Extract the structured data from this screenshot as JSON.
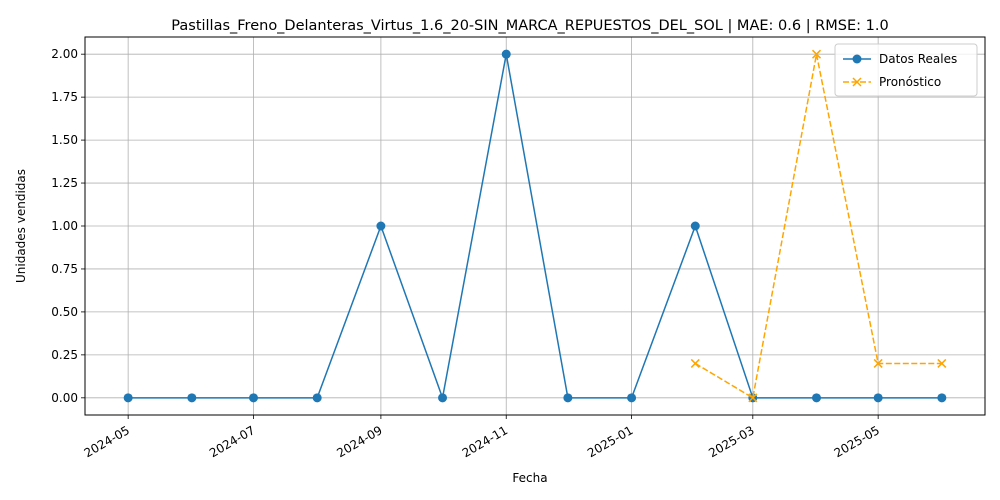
{
  "chart_data": {
    "type": "line",
    "title": "Pastillas_Freno_Delanteras_Virtus_1.6_20-SIN_MARCA_REPUESTOS_DEL_SOL | MAE: 0.6 | RMSE: 1.0",
    "xlabel": "Fecha",
    "ylabel": "Unidades vendidas",
    "xlim": [
      "2024-04-10",
      "2025-06-22"
    ],
    "ylim": [
      -0.1,
      2.1
    ],
    "grid": true,
    "legend_position": "top-right",
    "x_ticks": [
      "2024-05-01",
      "2024-07-01",
      "2024-09-01",
      "2024-11-01",
      "2025-01-01",
      "2025-03-01",
      "2025-05-01"
    ],
    "x_tick_labels": [
      "2024-05",
      "2024-07",
      "2024-09",
      "2024-11",
      "2025-01",
      "2025-03",
      "2025-05"
    ],
    "y_ticks": [
      0.0,
      0.25,
      0.5,
      0.75,
      1.0,
      1.25,
      1.5,
      1.75,
      2.0
    ],
    "y_tick_labels": [
      "0.00",
      "0.25",
      "0.50",
      "0.75",
      "1.00",
      "1.25",
      "1.50",
      "1.75",
      "2.00"
    ],
    "series": [
      {
        "name": "Datos Reales",
        "color": "#1f77b4",
        "style": "solid",
        "marker": "circle",
        "x": [
          "2024-05-01",
          "2024-06-01",
          "2024-07-01",
          "2024-08-01",
          "2024-09-01",
          "2024-10-01",
          "2024-11-01",
          "2024-12-01",
          "2025-01-01",
          "2025-02-01",
          "2025-03-01",
          "2025-04-01",
          "2025-05-01",
          "2025-06-01"
        ],
        "values": [
          0,
          0,
          0,
          0,
          1,
          0,
          2,
          0,
          0,
          1,
          0,
          0,
          0,
          0
        ]
      },
      {
        "name": "Pronóstico",
        "color": "#ffa500",
        "style": "dashed",
        "marker": "x",
        "x": [
          "2025-02-01",
          "2025-03-01",
          "2025-04-01",
          "2025-05-01",
          "2025-06-01"
        ],
        "values": [
          0.2,
          0.0,
          2.0,
          0.2,
          0.2
        ]
      }
    ]
  }
}
